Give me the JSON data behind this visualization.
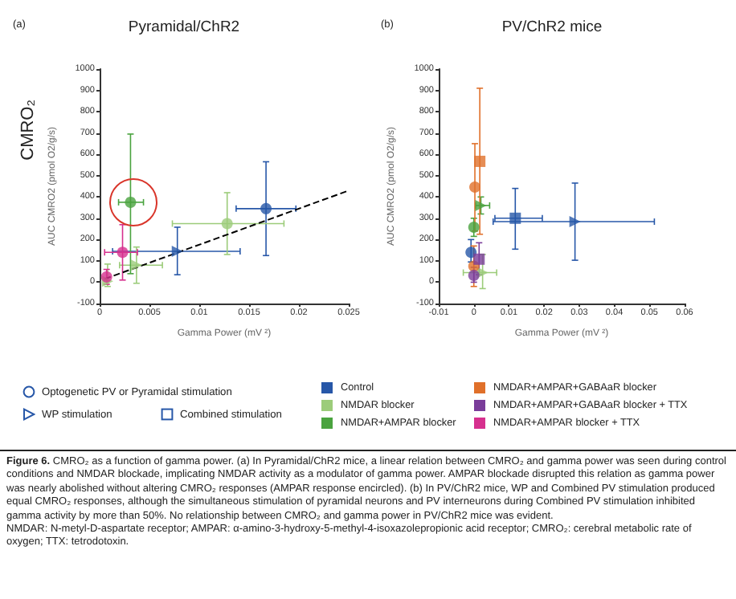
{
  "chart_data": [
    {
      "type": "scatter",
      "title": "Pyramidal/ChR2",
      "xlabel": "Gamma Power (mV ²)",
      "ylabel": "AUC CMRO2 (pmol O2/g/s)",
      "annotations": [
        "(a)",
        "CMRO₂"
      ],
      "xlim": [
        0,
        0.025
      ],
      "xticks": [
        0,
        0.005,
        0.01,
        0.015,
        0.02,
        0.025
      ],
      "ylim": [
        -100,
        1000
      ],
      "yticks": [
        -100,
        0,
        100,
        200,
        300,
        400,
        500,
        600,
        700,
        800,
        900,
        1000
      ],
      "grid": false,
      "legend": "bottom",
      "series": [
        {
          "name": "Control",
          "color": "#2757a8",
          "marker": "circle",
          "x": [
            0.0167
          ],
          "values": [
            345
          ],
          "errors": [
            [
              125,
              565
            ]
          ],
          "xerrors": [
            [
              0.0137,
              0.0197
            ]
          ]
        },
        {
          "color": "#2757a8",
          "marker": "triangle",
          "x": [
            0.0078
          ],
          "values": [
            145
          ],
          "errors": [
            [
              35,
              258
            ]
          ],
          "xerrors": [
            [
              0.0013,
              0.0141
            ]
          ]
        },
        {
          "name": "NMDAR blocker",
          "color": "#9ccc7a",
          "marker": "circle",
          "x": [
            0.0128
          ],
          "values": [
            275
          ],
          "errors": [
            [
              130,
              420
            ]
          ],
          "xerrors": [
            [
              0.0073,
              0.0185
            ]
          ]
        },
        {
          "color": "#9ccc7a",
          "marker": "triangle",
          "x": [
            0.0037,
            0.0008
          ],
          "values": [
            80,
            5
          ],
          "errors": [
            [
              -5,
              165
            ],
            [
              -20,
              85
            ]
          ],
          "xerrors": [
            [
              0.002,
              0.0063
            ],
            null
          ]
        },
        {
          "name": "NMDAR+AMPAR blocker",
          "color": "#4aa33f",
          "marker": "circle",
          "x": [
            0.0031
          ],
          "values": [
            375
          ],
          "errors": [
            [
              40,
              695
            ]
          ],
          "xerrors": [
            [
              0.0019,
              0.0044
            ]
          ]
        },
        {
          "name": "NMDAR+AMPAR blocker + TTX",
          "color": "#d6308e",
          "marker": "circle",
          "x": [
            0.0023,
            0.0007
          ],
          "values": [
            140,
            25
          ],
          "errors": [
            [
              10,
              270
            ],
            [
              -10,
              60
            ]
          ],
          "xerrors": [
            [
              0.0005,
              0.0038
            ],
            null
          ]
        },
        {
          "type": "line",
          "color": "#000000",
          "marker": "none",
          "line_style": "dashed",
          "x": [
            0.0005,
            0.025
          ],
          "values": [
            15,
            430
          ]
        }
      ]
    },
    {
      "type": "scatter",
      "title": "PV/ChR2 mice",
      "xlabel": "Gamma Power (mV ²)",
      "ylabel": "AUC CMRO2 (pmol O2/g/s)",
      "annotations": [
        "(b)"
      ],
      "xlim": [
        -0.01,
        0.06
      ],
      "xticks": [
        -0.01,
        0,
        0.01,
        0.02,
        0.03,
        0.04,
        0.05,
        0.06
      ],
      "ylim": [
        -100,
        1000
      ],
      "yticks": [
        -100,
        0,
        100,
        200,
        300,
        400,
        500,
        600,
        700,
        800,
        900,
        1000
      ],
      "grid": false,
      "legend": "bottom",
      "series": [
        {
          "color": "#2757a8",
          "marker": "circle",
          "x": [
            -0.0008
          ],
          "values": [
            140
          ],
          "errors": [
            [
              95,
              200
            ]
          ]
        },
        {
          "color": "#2757a8",
          "marker": "square",
          "x": [
            0.0118
          ],
          "values": [
            300
          ],
          "errors": [
            [
              155,
              440
            ]
          ],
          "xerrors": [
            [
              0.006,
              0.0195
            ]
          ]
        },
        {
          "color": "#2757a8",
          "marker": "triangle",
          "x": [
            0.0288
          ],
          "values": [
            284
          ],
          "errors": [
            [
              103,
              465
            ]
          ],
          "xerrors": [
            [
              0.0055,
              0.0514
            ]
          ]
        },
        {
          "color": "#9ccc7a",
          "marker": "triangle",
          "x": [
            0.0025
          ],
          "values": [
            45
          ],
          "errors": [
            [
              -30,
              130
            ]
          ],
          "xerrors": [
            [
              -0.003,
              0.0065
            ]
          ]
        },
        {
          "color": "#4aa33f",
          "marker": "circle",
          "x": [
            0.0
          ],
          "values": [
            258
          ],
          "errors": [
            [
              215,
              300
            ]
          ]
        },
        {
          "color": "#4aa33f",
          "marker": "triangle",
          "x": [
            0.002
          ],
          "values": [
            360
          ],
          "errors": [
            [
              320,
              400
            ]
          ],
          "xerrors": [
            [
              0.0005,
              0.0045
            ]
          ]
        },
        {
          "name": "NMDAR+AMPAR+GABAaR blocker",
          "color": "#e0702a",
          "marker": "circle",
          "x": [
            0.0003,
            0.0
          ],
          "values": [
            446,
            75
          ],
          "errors": [
            [
              240,
              650
            ],
            [
              -20,
              170
            ]
          ]
        },
        {
          "color": "#e0702a",
          "marker": "square",
          "x": [
            0.0017
          ],
          "values": [
            567
          ],
          "errors": [
            [
              225,
              910
            ]
          ]
        },
        {
          "name": "NMDAR+AMPAR+GABAaR blocker + TTX",
          "color": "#7a3d9a",
          "marker": "square",
          "x": [
            0.0015
          ],
          "values": [
            108
          ],
          "errors": [
            [
              35,
              185
            ]
          ]
        },
        {
          "color": "#7a3d9a",
          "marker": "circle",
          "x": [
            0.0
          ],
          "values": [
            32
          ],
          "errors": [
            [
              0,
              70
            ]
          ]
        }
      ]
    },
    {
      "type": "other",
      "annotations": [
        "Optogenetic PV or Pyramidal stimulation",
        "WP stimulation",
        "Combined stimulation",
        "Figure 6.",
        "CMRO₂ as a function of gamma power. (a) In Pyramidal/ChR2 mice, a linear relation between CMRO₂ and gamma power was seen during control conditions and NMDAR blockade, implicating NMDAR activity as a modulator of gamma power. AMPAR blockade disrupted this relation as gamma power was nearly abolished without altering CMRO₂ responses (AMPAR response encircled). (b) In PV/ChR2 mice, WP and Combined PV stimulation produced equal CMRO₂ responses, although the simultaneous stimulation of pyramidal neurons and PV interneurons during Combined PV stimulation inhibited gamma activity by more than 50%. No relationship between CMRO₂ and gamma power in PV/ChR2 mice was evident.",
        "NMDAR: N-metyl-D-aspartate receptor; AMPAR: α-amino-3-hydroxy-5-methyl-4-isoxazolepropionic acid receptor; CMRO₂: cerebral metabolic rate of oxygen; TTX: tetrodotoxin."
      ]
    }
  ]
}
